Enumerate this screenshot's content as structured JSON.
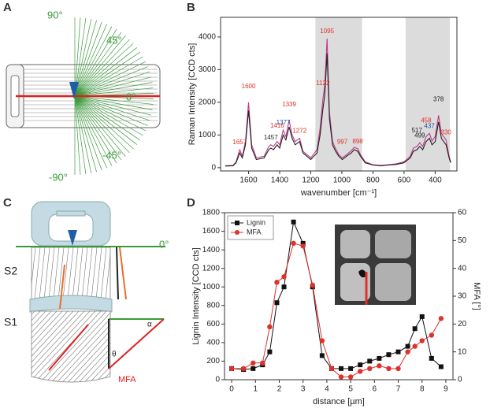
{
  "panel_a": {
    "label": "A",
    "angles": [
      "90°",
      "45°",
      "0°",
      "-45°",
      "-90°"
    ]
  },
  "panel_c": {
    "label": "C",
    "zero": "0°",
    "layers": [
      "S2",
      "S1"
    ],
    "mfa": "MFA",
    "alpha": "α",
    "theta": "θ"
  },
  "chart_data": [
    {
      "type": "line",
      "panel": "B",
      "x_label": "wavenumber [cm⁻¹]",
      "y_label": "Raman Intensity [CCD cts]",
      "xlim": [
        1780,
        260
      ],
      "xticks": [
        1600,
        1400,
        1200,
        1000,
        800,
        600,
        400
      ],
      "ylim": [
        -100,
        4600
      ],
      "yticks": [
        0,
        1000,
        2000,
        3000,
        4000
      ],
      "shaded_ranges": [
        [
          1170,
          870
        ],
        [
          590,
          305
        ]
      ],
      "x": [
        1750,
        1700,
        1680,
        1657,
        1640,
        1620,
        1600,
        1580,
        1550,
        1500,
        1470,
        1457,
        1440,
        1416,
        1400,
        1377,
        1360,
        1339,
        1320,
        1300,
        1272,
        1250,
        1200,
        1160,
        1140,
        1122,
        1110,
        1095,
        1080,
        1060,
        1040,
        1020,
        997,
        970,
        940,
        920,
        898,
        880,
        850,
        800,
        750,
        700,
        650,
        600,
        560,
        540,
        517,
        499,
        480,
        458,
        437,
        420,
        400,
        378,
        360,
        345,
        330,
        310,
        300
      ],
      "series": [
        {
          "color": "#c0398a",
          "values": [
            60,
            70,
            180,
            550,
            350,
            800,
            2000,
            700,
            300,
            350,
            650,
            700,
            650,
            800,
            700,
            1150,
            950,
            1450,
            1000,
            800,
            900,
            500,
            300,
            550,
            1200,
            2100,
            2500,
            3950,
            1700,
            800,
            580,
            400,
            300,
            400,
            520,
            620,
            580,
            400,
            180,
            90,
            70,
            90,
            120,
            180,
            350,
            600,
            650,
            760,
            650,
            950,
            1050,
            820,
            950,
            1600,
            1050,
            950,
            850,
            350,
            170
          ]
        },
        {
          "color": "#222222",
          "values": [
            50,
            60,
            150,
            450,
            300,
            700,
            1750,
            600,
            250,
            300,
            550,
            600,
            550,
            700,
            600,
            1000,
            850,
            1250,
            900,
            700,
            800,
            450,
            250,
            450,
            1000,
            1800,
            2200,
            3500,
            1500,
            700,
            500,
            350,
            250,
            350,
            450,
            550,
            500,
            350,
            150,
            80,
            60,
            80,
            100,
            150,
            300,
            500,
            550,
            650,
            550,
            800,
            900,
            700,
            800,
            1400,
            900,
            800,
            700,
            300,
            150
          ]
        }
      ],
      "peaks": [
        1657,
        1600,
        1457,
        1416,
        1377,
        1339,
        1272,
        1122,
        1095,
        997,
        898,
        517,
        499,
        458,
        437,
        378,
        330
      ],
      "peak_colors": [
        "#e0302a",
        "#e0302a",
        "#222222",
        "#e0302a",
        "#1f4fb0",
        "#e0302a",
        "#e0302a",
        "#e0302a",
        "#e0302a",
        "#e0302a",
        "#e0302a",
        "#222222",
        "#222222",
        "#e0302a",
        "#1f4fb0",
        "#222222",
        "#e0302a"
      ]
    },
    {
      "type": "line",
      "panel": "D",
      "x_label": "distance [µm]",
      "y_label": "Lignin Intensity [CCD cts]",
      "y2_label": "MFA [°]",
      "xlim": [
        -0.3,
        9.3
      ],
      "xticks": [
        0,
        1,
        2,
        3,
        4,
        5,
        6,
        7,
        8,
        9
      ],
      "ylim": [
        0,
        1800
      ],
      "yticks": [
        0,
        200,
        400,
        600,
        800,
        1000,
        1200,
        1400,
        1600,
        1800
      ],
      "y2lim": [
        0,
        60
      ],
      "y2ticks": [
        0,
        10,
        20,
        30,
        40,
        50,
        60
      ],
      "legend": "upper left",
      "x": [
        0,
        0.5,
        0.9,
        1.3,
        1.6,
        1.9,
        2.2,
        2.6,
        3.0,
        3.4,
        3.8,
        4.2,
        4.6,
        5.0,
        5.4,
        5.8,
        6.2,
        6.6,
        7.0,
        7.4,
        7.7,
        8.0,
        8.4,
        8.8
      ],
      "series": [
        {
          "name": "Lignin",
          "color": "#111111",
          "marker": "square",
          "values": [
            120,
            110,
            120,
            160,
            300,
            830,
            1000,
            1700,
            1470,
            1000,
            260,
            120,
            120,
            120,
            160,
            200,
            230,
            270,
            300,
            360,
            550,
            680,
            230,
            140
          ]
        },
        {
          "name": "MFA",
          "color": "#e0302a",
          "marker": "circle",
          "axis": "y2",
          "values": [
            4,
            4,
            6,
            6,
            19,
            35,
            37,
            49,
            48,
            34,
            14,
            4,
            1,
            1,
            3,
            4,
            5,
            4,
            4,
            10,
            12,
            14,
            16,
            22
          ]
        }
      ]
    }
  ]
}
